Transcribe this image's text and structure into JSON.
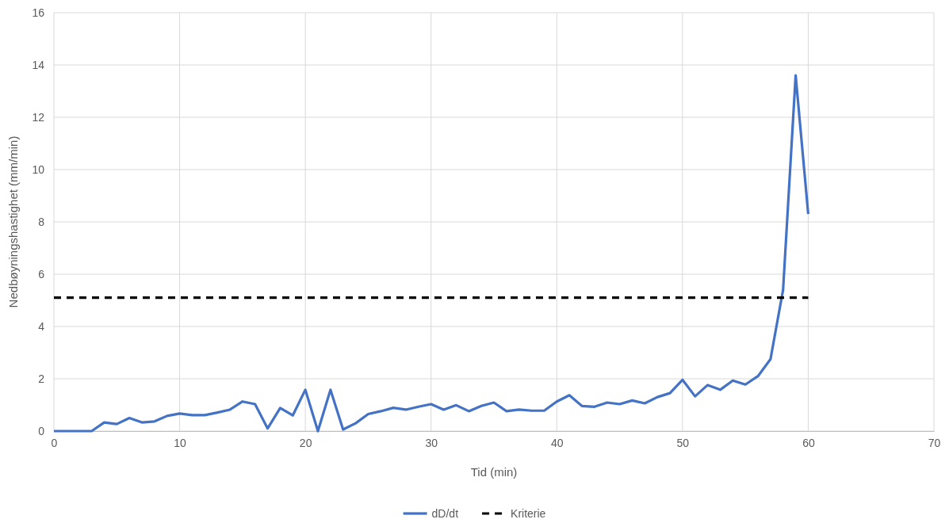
{
  "chart_data": {
    "type": "line",
    "xlabel": "Tid (min)",
    "ylabel": "Nedbøyningshastighet (mm/min)",
    "x": [
      0,
      1,
      2,
      3,
      4,
      5,
      6,
      7,
      8,
      9,
      10,
      11,
      12,
      13,
      14,
      15,
      16,
      17,
      18,
      19,
      20,
      21,
      22,
      23,
      24,
      25,
      26,
      27,
      28,
      29,
      30,
      31,
      32,
      33,
      34,
      35,
      36,
      37,
      38,
      39,
      40,
      41,
      42,
      43,
      44,
      45,
      46,
      47,
      48,
      49,
      50,
      51,
      52,
      53,
      54,
      55,
      56,
      57,
      58,
      59,
      60
    ],
    "series": [
      {
        "name": "dD/dt",
        "color": "#4472c4",
        "line_style": "solid",
        "values": [
          0,
          0,
          0,
          0,
          0.33,
          0.27,
          0.5,
          0.33,
          0.37,
          0.58,
          0.67,
          0.61,
          0.61,
          0.71,
          0.82,
          1.13,
          1.03,
          0.1,
          0.88,
          0.6,
          1.58,
          0,
          1.58,
          0.06,
          0.3,
          0.65,
          0.76,
          0.89,
          0.82,
          0.93,
          1.03,
          0.82,
          0.99,
          0.76,
          0.96,
          1.09,
          0.76,
          0.82,
          0.78,
          0.78,
          1.13,
          1.37,
          0.96,
          0.93,
          1.09,
          1.03,
          1.17,
          1.06,
          1.3,
          1.45,
          1.96,
          1.33,
          1.76,
          1.58,
          1.93,
          1.78,
          2.1,
          2.75,
          5.4,
          13.6,
          8.3
        ]
      },
      {
        "name": "Kriterie",
        "color": "#000000",
        "line_style": "dashed",
        "x": [
          0,
          60
        ],
        "values": [
          5.1,
          5.1
        ]
      }
    ],
    "xlim": [
      0,
      70
    ],
    "xticks": [
      0,
      10,
      20,
      30,
      40,
      50,
      60,
      70
    ],
    "ylim": [
      0,
      16
    ],
    "yticks": [
      0,
      2,
      4,
      6,
      8,
      10,
      12,
      14,
      16
    ],
    "grid": true,
    "legend": "bottom"
  }
}
